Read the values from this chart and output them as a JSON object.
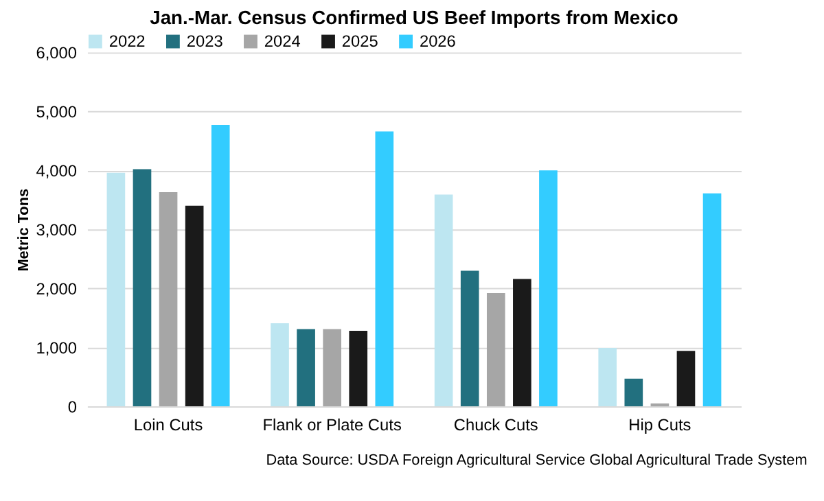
{
  "chart_data": {
    "type": "bar",
    "title": "Jan.-Mar. Census Confirmed US Beef Imports from Mexico",
    "ylabel": "Metric Tons",
    "categories": [
      "Loin Cuts",
      "Flank or Plate Cuts",
      "Chuck Cuts",
      "Hip Cuts"
    ],
    "series": [
      {
        "name": "2022",
        "color": "#bde6f1",
        "values": [
          3960,
          1410,
          3590,
          990
        ]
      },
      {
        "name": "2023",
        "color": "#22707f",
        "values": [
          4020,
          1310,
          2300,
          470
        ]
      },
      {
        "name": "2024",
        "color": "#a6a6a6",
        "values": [
          3630,
          1310,
          1920,
          50
        ]
      },
      {
        "name": "2025",
        "color": "#1a1a1a",
        "values": [
          3400,
          1280,
          2160,
          940
        ]
      },
      {
        "name": "2026",
        "color": "#33ccff",
        "values": [
          4770,
          4660,
          4000,
          3610
        ]
      }
    ],
    "ylim": [
      0,
      6000
    ],
    "yticks": [
      {
        "value": 0,
        "label": "0"
      },
      {
        "value": 1000,
        "label": "1,000"
      },
      {
        "value": 2000,
        "label": "2,000"
      },
      {
        "value": 3000,
        "label": "3,000"
      },
      {
        "value": 4000,
        "label": "4,000"
      },
      {
        "value": 5000,
        "label": "5,000"
      },
      {
        "value": 6000,
        "label": "6,000"
      }
    ],
    "grid": "y",
    "legend": "top",
    "annotations": [
      "Data Source: USDA Foreign Agricultural Service Global Agricultural Trade System"
    ]
  }
}
